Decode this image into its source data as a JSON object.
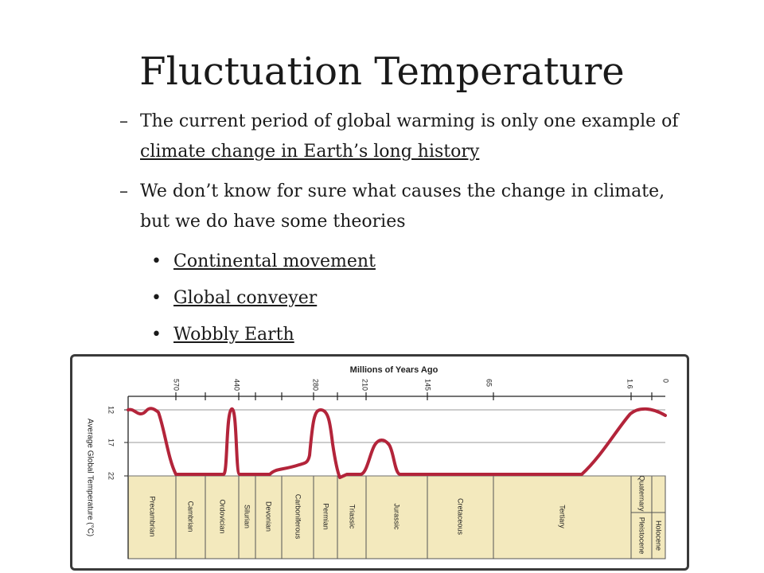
{
  "slide": {
    "title": "Fluctuation Temperature",
    "bullets": [
      {
        "prefix": "The current period of global warming is only one example of ",
        "link": "climate change in Earth’s long history",
        "suffix": ""
      },
      {
        "prefix": "We don’t know for sure what causes the change in climate, but we do have some theories",
        "link": "",
        "suffix": ""
      }
    ],
    "subbullets": [
      "Continental movement",
      "Global conveyer",
      "Wobbly Earth"
    ]
  },
  "chart_data": {
    "type": "line",
    "title": "Millions of Years Ago",
    "ylabel": "Average Global Temperature (°C)",
    "yticks": [
      "12",
      "17",
      "22"
    ],
    "xticks": [
      "570",
      "440",
      "280",
      "210",
      "145",
      "65",
      "1.6",
      "0"
    ],
    "periods": [
      "Precambrian",
      "Cambrian",
      "Ordovician",
      "Silurian",
      "Devonian",
      "Carboniferous",
      "Permian",
      "Triassic",
      "Jurassic",
      "Cretaceous",
      "Tertiary",
      "Quaternary",
      "Pleistocene",
      "Holocene"
    ],
    "colors": {
      "curve": "#b3243a",
      "band": "#f3e9bd",
      "axis": "#222222"
    }
  }
}
